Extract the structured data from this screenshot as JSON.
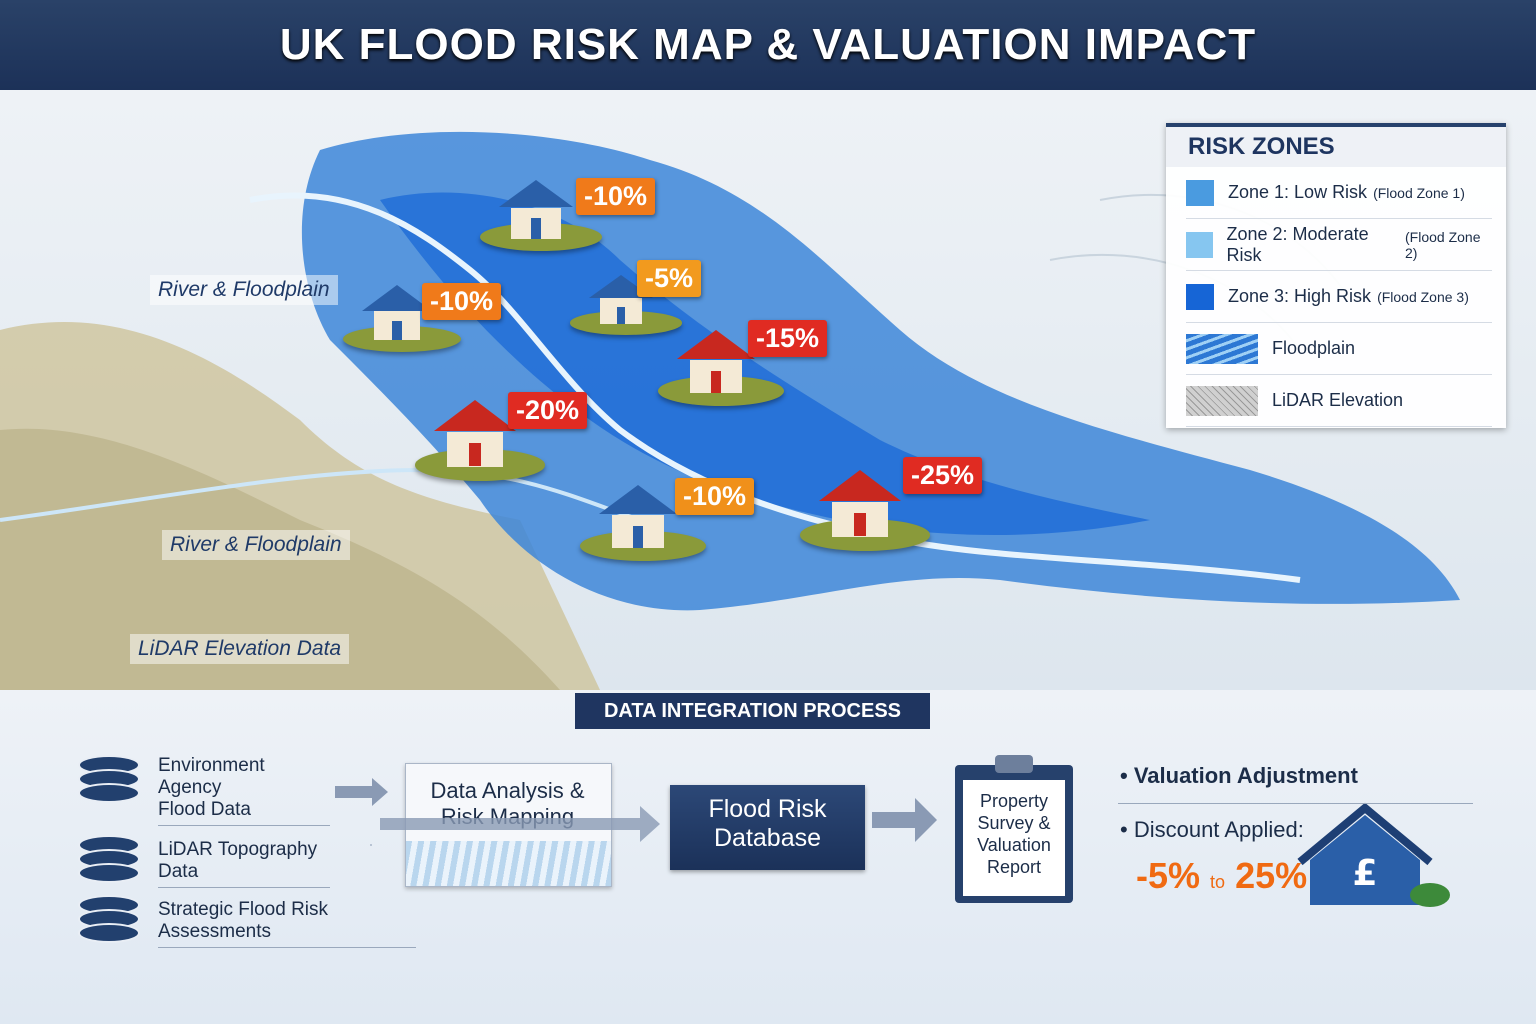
{
  "header": {
    "title": "UK FLOOD RISK MAP & VALUATION IMPACT"
  },
  "map": {
    "labels": [
      "River & Floodplain",
      "River & Floodplain",
      "LiDAR Elevation Data"
    ],
    "markers": [
      {
        "label": "-10%",
        "color": "#f07a1a"
      },
      {
        "label": "-10%",
        "color": "#f07a1a"
      },
      {
        "label": "-5%",
        "color": "#f29a1e"
      },
      {
        "label": "-15%",
        "color": "#e02b22"
      },
      {
        "label": "-20%",
        "color": "#e02b22"
      },
      {
        "label": "-10%",
        "color": "#f0901a"
      },
      {
        "label": "-25%",
        "color": "#e02b22"
      }
    ]
  },
  "legend": {
    "title": "RISK ZONES",
    "items": [
      {
        "label": "Zone 1: Low Risk",
        "note": "(Flood Zone 1)",
        "color": "#4a9be0"
      },
      {
        "label": "Zone 2: Moderate Risk",
        "note": "(Flood Zone 2)",
        "color": "#86c6f0"
      },
      {
        "label": "Zone 3: High Risk",
        "note": "(Flood Zone 3)",
        "color": "#1665d6"
      },
      {
        "label": "Floodplain"
      },
      {
        "label": "LiDAR Elevation"
      }
    ]
  },
  "process": {
    "title": "DATA INTEGRATION PROCESS",
    "sources": [
      "Environment Agency\nFlood Data",
      "LiDAR Topography Data",
      "Strategic Flood Risk Assessments"
    ],
    "steps": [
      "Data Analysis &\nRisk Mapping",
      "Flood Risk\nDatabase",
      "Property\nSurvey &\nValuation\nReport"
    ]
  },
  "outcome": {
    "items": [
      "Valuation Adjustment",
      "Discount Applied:"
    ],
    "range": [
      "-5%",
      "to",
      "25%"
    ]
  }
}
